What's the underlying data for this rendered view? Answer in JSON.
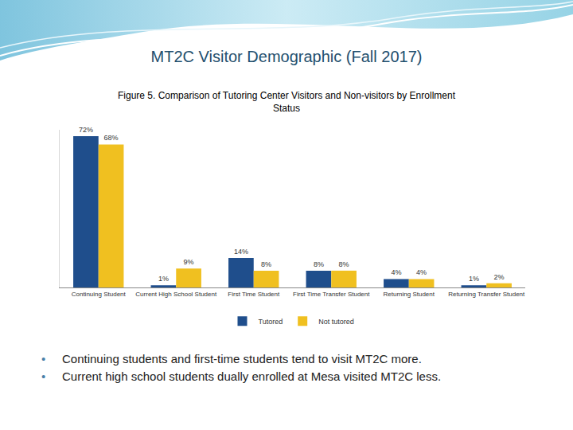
{
  "slide": {
    "title": "MT2C Visitor Demographic (Fall 2017)",
    "bullets": [
      "Continuing students and first-time students tend to visit MT2C more.",
      "Current high school students dually enrolled at Mesa visited MT2C less."
    ]
  },
  "chart_data": {
    "type": "bar",
    "title": "Figure 5. Comparison of Tutoring Center Visitors and Non-visitors by Enrollment Status",
    "categories": [
      "Continuing Student",
      "Current High School Student",
      "First Time Student",
      "First Time Transfer Student",
      "Returning Student",
      "Returning Transfer Student"
    ],
    "series": [
      {
        "name": "Tutored",
        "color": "#1f4e8c",
        "values": [
          72,
          1,
          14,
          8,
          4,
          1
        ],
        "value_labels": [
          "72%",
          "1%",
          "14%",
          "8%",
          "4%",
          "1%"
        ]
      },
      {
        "name": "Not tutored",
        "color": "#f0c020",
        "values": [
          68,
          9,
          8,
          8,
          4,
          2
        ],
        "value_labels": [
          "68%",
          "9%",
          "8%",
          "8%",
          "4%",
          "2%"
        ]
      }
    ],
    "ylim": [
      0,
      75
    ],
    "grid": false,
    "legend": "bottom",
    "data_labels": true,
    "tick_labels": "x"
  }
}
